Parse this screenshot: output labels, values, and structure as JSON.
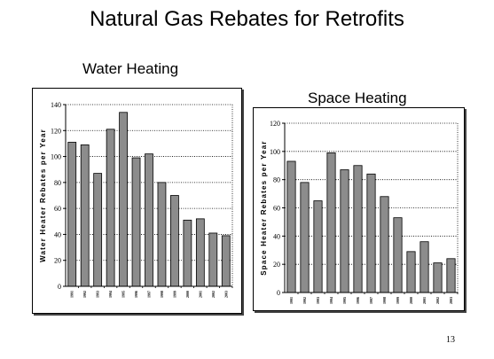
{
  "slide": {
    "title": "Natural Gas Rebates for Retrofits",
    "page_number": "13"
  },
  "chart_data": [
    {
      "type": "bar",
      "title": "Water Heating",
      "xlabel": "",
      "ylabel": "Water Heater Rebates per Year",
      "ylim": [
        0,
        140
      ],
      "yticks": [
        0,
        20,
        40,
        60,
        80,
        100,
        120,
        140
      ],
      "grid": true,
      "categories": [
        "1991",
        "1992",
        "1993",
        "1994",
        "1995",
        "1996",
        "1997",
        "1998",
        "1999",
        "2000",
        "2001",
        "2002",
        "2003"
      ],
      "values": [
        111,
        109,
        87,
        121,
        134,
        99,
        102,
        80,
        70,
        51,
        52,
        41,
        39
      ],
      "bar_color": "#8c8c8c"
    },
    {
      "type": "bar",
      "title": "Space Heating",
      "xlabel": "",
      "ylabel": "Space Heater Rebates per Year",
      "ylim": [
        0,
        120
      ],
      "yticks": [
        0,
        20,
        40,
        60,
        80,
        100,
        120
      ],
      "grid": true,
      "categories": [
        "1991",
        "1992",
        "1993",
        "1994",
        "1995",
        "1996",
        "1997",
        "1998",
        "1999",
        "2000",
        "2001",
        "2002",
        "2003"
      ],
      "values": [
        93,
        78,
        65,
        99,
        87,
        90,
        84,
        68,
        53,
        29,
        36,
        21,
        24
      ],
      "bar_color": "#8c8c8c"
    }
  ]
}
